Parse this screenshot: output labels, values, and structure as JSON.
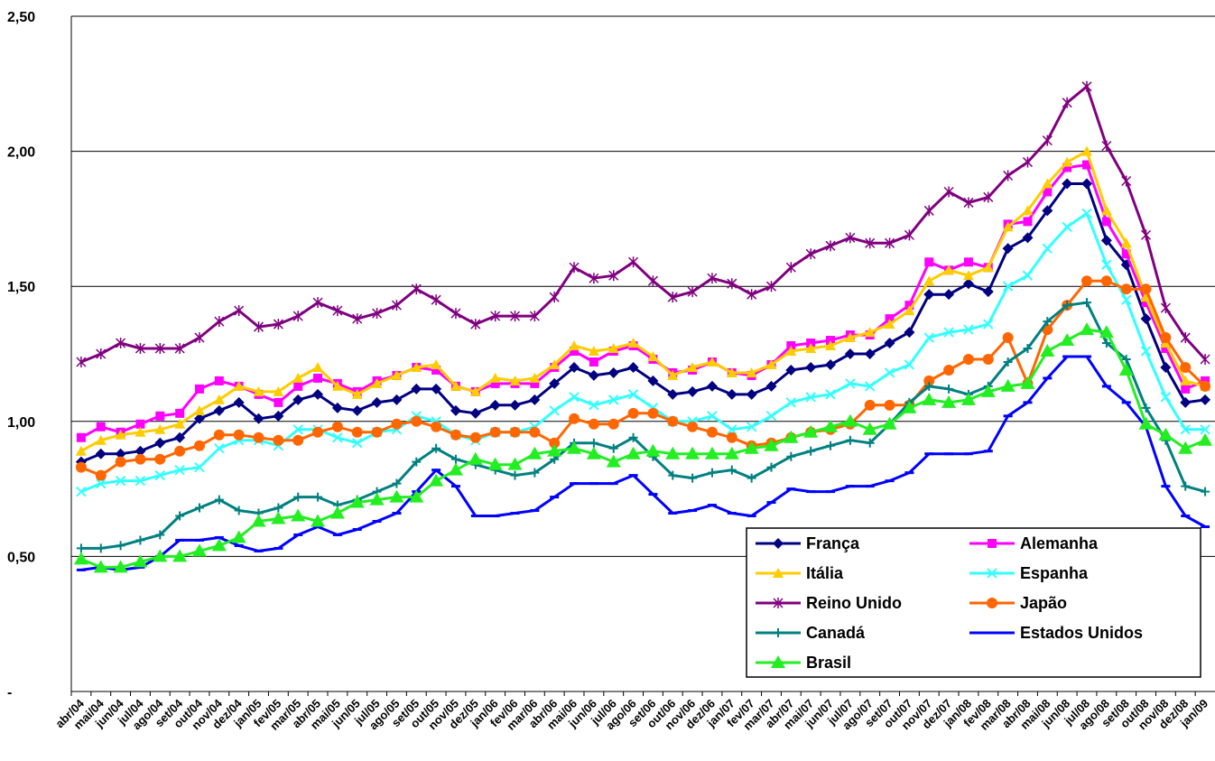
{
  "chart_data": {
    "type": "line",
    "categories": [
      "abr/04",
      "mai/04",
      "jun/04",
      "jul/04",
      "ago/04",
      "set/04",
      "out/04",
      "nov/04",
      "dez/04",
      "jan/05",
      "fev/05",
      "mar/05",
      "abr/05",
      "mai/05",
      "jun/05",
      "jul/05",
      "ago/05",
      "set/05",
      "out/05",
      "nov/05",
      "dez/05",
      "jan/06",
      "fev/06",
      "mar/06",
      "abr/06",
      "mai/06",
      "jun/06",
      "jul/06",
      "ago/06",
      "set/06",
      "out/06",
      "nov/06",
      "dez/06",
      "jan/07",
      "fev/07",
      "mar/07",
      "abr/07",
      "mai/07",
      "jun/07",
      "jul/07",
      "ago/07",
      "set/07",
      "out/07",
      "nov/07",
      "dez/07",
      "jan/08",
      "fev/08",
      "mar/08",
      "abr/08",
      "mai/08",
      "jun/08",
      "jul/08",
      "ago/08",
      "set/08",
      "out/08",
      "nov/08",
      "dez/08",
      "jan/09"
    ],
    "ylim": [
      0,
      2.5
    ],
    "yticks": [
      {
        "value": 0,
        "label": "-"
      },
      {
        "value": 0.5,
        "label": "0,50"
      },
      {
        "value": 1,
        "label": "1,00"
      },
      {
        "value": 1.5,
        "label": "1,50"
      },
      {
        "value": 2,
        "label": "2,00"
      },
      {
        "value": 2.5,
        "label": "2,50"
      }
    ],
    "grid": true,
    "legend": "lower right",
    "series": [
      {
        "name": "França",
        "color": "#000080",
        "marker": "diamond",
        "values": [
          0.85,
          0.88,
          0.88,
          0.89,
          0.92,
          0.94,
          1.01,
          1.04,
          1.07,
          1.01,
          1.02,
          1.08,
          1.1,
          1.05,
          1.04,
          1.07,
          1.08,
          1.12,
          1.12,
          1.04,
          1.03,
          1.06,
          1.06,
          1.08,
          1.14,
          1.2,
          1.17,
          1.18,
          1.2,
          1.15,
          1.1,
          1.11,
          1.13,
          1.1,
          1.1,
          1.13,
          1.19,
          1.2,
          1.21,
          1.25,
          1.25,
          1.29,
          1.33,
          1.47,
          1.47,
          1.51,
          1.48,
          1.64,
          1.68,
          1.78,
          1.88,
          1.88,
          1.67,
          1.58,
          1.38,
          1.2,
          1.07,
          1.08
        ]
      },
      {
        "name": "Alemanha",
        "color": "#ff00ff",
        "marker": "square",
        "values": [
          0.94,
          0.98,
          0.96,
          0.99,
          1.02,
          1.03,
          1.12,
          1.15,
          1.13,
          1.1,
          1.07,
          1.13,
          1.16,
          1.14,
          1.11,
          1.15,
          1.17,
          1.2,
          1.19,
          1.13,
          1.11,
          1.14,
          1.14,
          1.14,
          1.2,
          1.26,
          1.22,
          1.26,
          1.28,
          1.23,
          1.18,
          1.19,
          1.22,
          1.18,
          1.17,
          1.21,
          1.28,
          1.29,
          1.3,
          1.32,
          1.32,
          1.38,
          1.43,
          1.59,
          1.56,
          1.59,
          1.57,
          1.73,
          1.74,
          1.85,
          1.94,
          1.95,
          1.74,
          1.62,
          1.44,
          1.27,
          1.12,
          1.15
        ]
      },
      {
        "name": "Itália",
        "color": "#ffcc00",
        "marker": "triangle",
        "values": [
          0.89,
          0.93,
          0.95,
          0.96,
          0.97,
          0.99,
          1.04,
          1.08,
          1.13,
          1.11,
          1.11,
          1.16,
          1.2,
          1.13,
          1.1,
          1.14,
          1.17,
          1.2,
          1.21,
          1.13,
          1.11,
          1.16,
          1.15,
          1.16,
          1.21,
          1.28,
          1.26,
          1.27,
          1.29,
          1.24,
          1.17,
          1.2,
          1.22,
          1.18,
          1.18,
          1.21,
          1.26,
          1.27,
          1.28,
          1.31,
          1.33,
          1.36,
          1.41,
          1.52,
          1.56,
          1.54,
          1.57,
          1.72,
          1.78,
          1.88,
          1.96,
          2.0,
          1.78,
          1.66,
          1.46,
          1.29,
          1.15,
          1.13
        ]
      },
      {
        "name": "Espanha",
        "color": "#33ffff",
        "marker": "x",
        "values": [
          0.74,
          0.77,
          0.78,
          0.78,
          0.8,
          0.82,
          0.83,
          0.9,
          0.93,
          0.93,
          0.91,
          0.97,
          0.97,
          0.94,
          0.92,
          0.96,
          0.97,
          1.02,
          1.0,
          0.95,
          0.93,
          0.96,
          0.96,
          0.98,
          1.04,
          1.09,
          1.06,
          1.08,
          1.1,
          1.05,
          1.0,
          1.0,
          1.02,
          0.97,
          0.98,
          1.02,
          1.07,
          1.09,
          1.1,
          1.14,
          1.13,
          1.18,
          1.21,
          1.31,
          1.33,
          1.34,
          1.36,
          1.5,
          1.54,
          1.64,
          1.72,
          1.77,
          1.58,
          1.45,
          1.26,
          1.09,
          0.97,
          0.97
        ]
      },
      {
        "name": "Reino Unido",
        "color": "#800080",
        "marker": "star",
        "values": [
          1.22,
          1.25,
          1.29,
          1.27,
          1.27,
          1.27,
          1.31,
          1.37,
          1.41,
          1.35,
          1.36,
          1.39,
          1.44,
          1.41,
          1.38,
          1.4,
          1.43,
          1.49,
          1.45,
          1.4,
          1.36,
          1.39,
          1.39,
          1.39,
          1.46,
          1.57,
          1.53,
          1.54,
          1.59,
          1.52,
          1.46,
          1.48,
          1.53,
          1.51,
          1.47,
          1.5,
          1.57,
          1.62,
          1.65,
          1.68,
          1.66,
          1.66,
          1.69,
          1.78,
          1.85,
          1.81,
          1.83,
          1.91,
          1.96,
          2.04,
          2.18,
          2.24,
          2.02,
          1.89,
          1.69,
          1.42,
          1.31,
          1.23
        ]
      },
      {
        "name": "Japão",
        "color": "#ff6600",
        "marker": "circle",
        "values": [
          0.83,
          0.8,
          0.85,
          0.86,
          0.86,
          0.89,
          0.91,
          0.95,
          0.95,
          0.94,
          0.93,
          0.93,
          0.96,
          0.98,
          0.96,
          0.96,
          0.99,
          1.0,
          0.98,
          0.95,
          0.94,
          0.96,
          0.96,
          0.96,
          0.92,
          1.01,
          0.99,
          0.99,
          1.03,
          1.03,
          1.0,
          0.98,
          0.96,
          0.94,
          0.91,
          0.92,
          0.94,
          0.96,
          0.97,
          0.99,
          1.06,
          1.06,
          1.06,
          1.15,
          1.19,
          1.23,
          1.23,
          1.31,
          1.14,
          1.34,
          1.43,
          1.52,
          1.52,
          1.49,
          1.49,
          1.31,
          1.2,
          1.13
        ]
      },
      {
        "name": "Canadá",
        "color": "#008080",
        "marker": "plus",
        "values": [
          0.53,
          0.53,
          0.54,
          0.56,
          0.58,
          0.65,
          0.68,
          0.71,
          0.67,
          0.66,
          0.68,
          0.72,
          0.72,
          0.69,
          0.71,
          0.74,
          0.77,
          0.85,
          0.9,
          0.86,
          0.84,
          0.82,
          0.8,
          0.81,
          0.86,
          0.92,
          0.92,
          0.9,
          0.94,
          0.87,
          0.8,
          0.79,
          0.81,
          0.82,
          0.79,
          0.83,
          0.87,
          0.89,
          0.91,
          0.93,
          0.92,
          0.99,
          1.07,
          1.13,
          1.12,
          1.1,
          1.13,
          1.22,
          1.27,
          1.37,
          1.43,
          1.44,
          1.29,
          1.23,
          1.05,
          0.93,
          0.76,
          0.74
        ]
      },
      {
        "name": "Estados Unidos",
        "color": "#0000ff",
        "marker": "dash",
        "values": [
          0.45,
          0.46,
          0.45,
          0.46,
          0.5,
          0.56,
          0.56,
          0.57,
          0.54,
          0.52,
          0.53,
          0.58,
          0.61,
          0.58,
          0.6,
          0.63,
          0.66,
          0.74,
          0.82,
          0.76,
          0.65,
          0.65,
          0.66,
          0.67,
          0.72,
          0.77,
          0.77,
          0.77,
          0.8,
          0.73,
          0.66,
          0.67,
          0.69,
          0.66,
          0.65,
          0.7,
          0.75,
          0.74,
          0.74,
          0.76,
          0.76,
          0.78,
          0.81,
          0.88,
          0.88,
          0.88,
          0.89,
          1.02,
          1.07,
          1.16,
          1.24,
          1.24,
          1.13,
          1.07,
          0.98,
          0.76,
          0.65,
          0.61
        ]
      },
      {
        "name": "Brasil",
        "color": "#22ee22",
        "marker": "triangle-large",
        "values": [
          0.49,
          0.46,
          0.46,
          0.48,
          0.5,
          0.5,
          0.52,
          0.54,
          0.57,
          0.63,
          0.64,
          0.65,
          0.63,
          0.66,
          0.7,
          0.71,
          0.72,
          0.72,
          0.78,
          0.82,
          0.86,
          0.84,
          0.84,
          0.88,
          0.89,
          0.9,
          0.88,
          0.85,
          0.88,
          0.89,
          0.88,
          0.88,
          0.88,
          0.88,
          0.9,
          0.91,
          0.94,
          0.96,
          0.98,
          1.0,
          0.97,
          0.99,
          1.05,
          1.08,
          1.07,
          1.08,
          1.11,
          1.13,
          1.14,
          1.26,
          1.3,
          1.34,
          1.33,
          1.19,
          0.99,
          0.95,
          0.9,
          0.93
        ]
      }
    ]
  }
}
